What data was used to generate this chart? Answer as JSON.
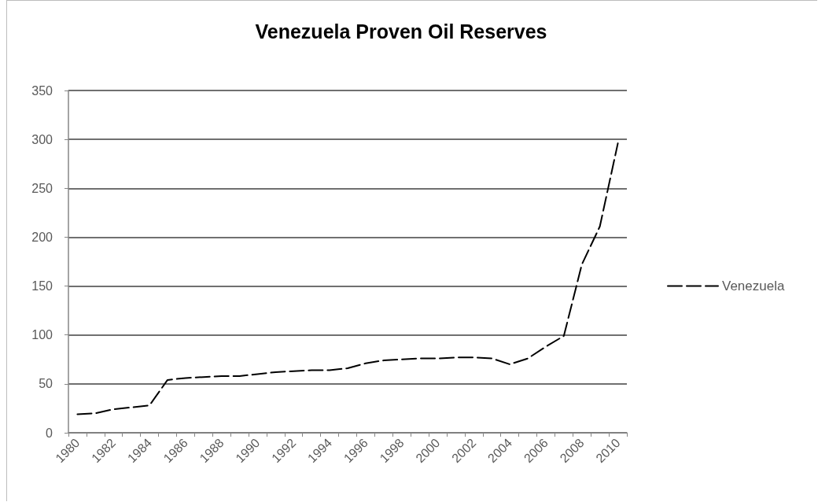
{
  "chart_data": {
    "type": "line",
    "title": "Venezuela Proven Oil Reserves",
    "categories": [
      "1980",
      null,
      "1982",
      null,
      "1984",
      null,
      "1986",
      null,
      "1988",
      null,
      "1990",
      null,
      "1992",
      null,
      "1994",
      null,
      "1996",
      null,
      "1998",
      null,
      "2000",
      null,
      "2002",
      null,
      "2004",
      null,
      "2006",
      null,
      "2008",
      null,
      "2010"
    ],
    "series": [
      {
        "name": "Venezuela",
        "color": "#000000",
        "values": [
          19,
          20,
          24,
          26,
          28,
          54,
          56,
          57,
          58,
          58,
          60,
          62,
          63,
          64,
          64,
          66,
          71,
          74,
          75,
          76,
          76,
          77,
          77,
          76,
          70,
          76,
          88,
          99,
          172,
          211,
          296
        ]
      }
    ],
    "ylim": [
      0,
      350
    ],
    "yticks": [
      0,
      50,
      100,
      150,
      200,
      250,
      300,
      350
    ],
    "grid": "y",
    "legend": "right",
    "marker": "none",
    "line_style": "dashed"
  }
}
